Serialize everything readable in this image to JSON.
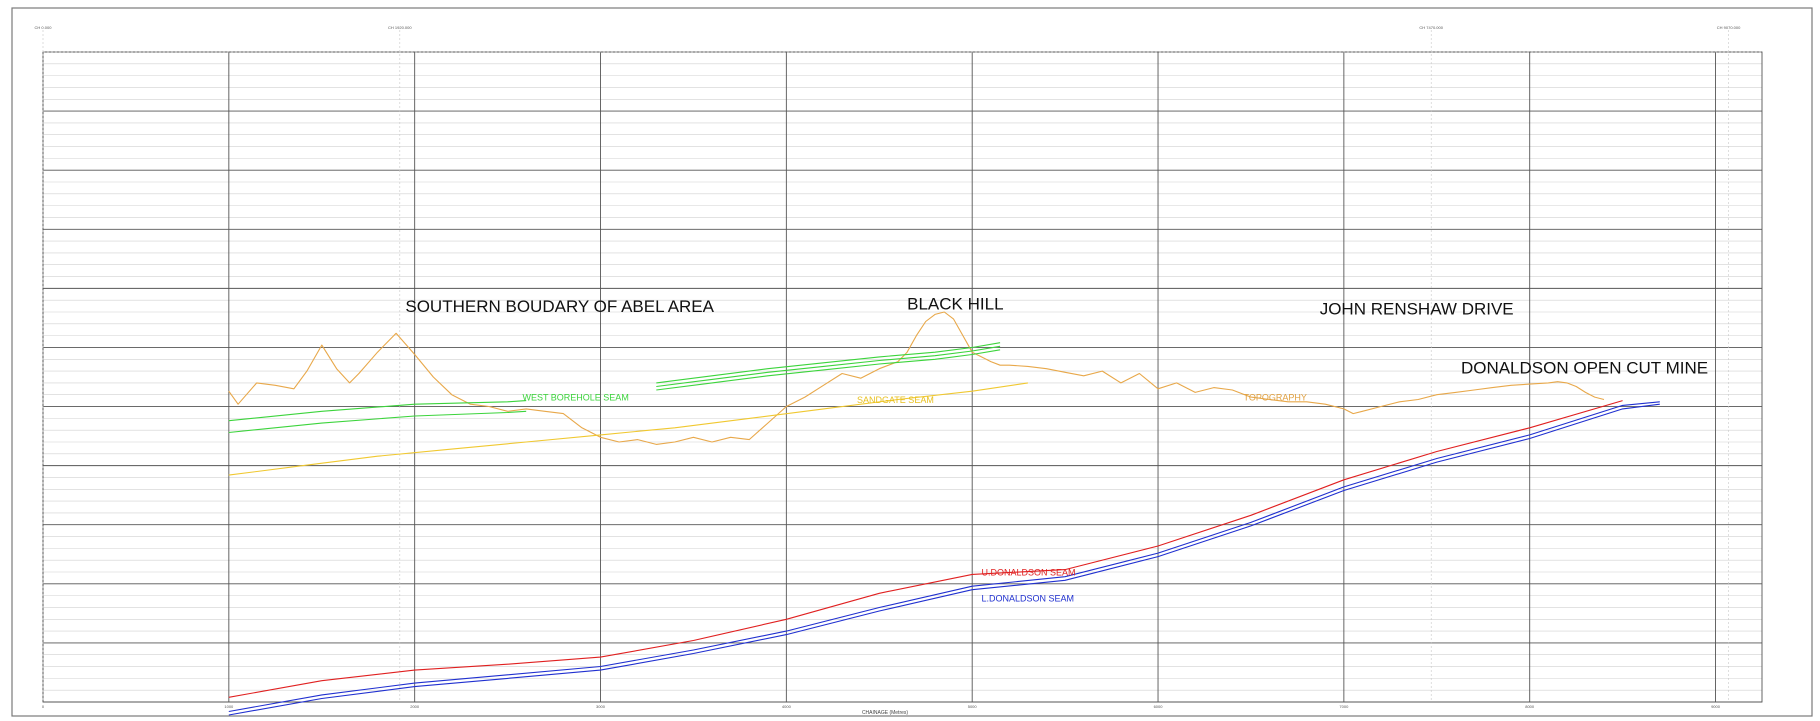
{
  "diagram": {
    "x_axis": {
      "title": "CHAINAGE (Metres)",
      "min": 0,
      "max": 9250,
      "major_step": 1000,
      "tick_labels": [
        "0",
        "1000",
        "2000",
        "3000",
        "4000",
        "5000",
        "6000",
        "7000",
        "8000",
        "9000"
      ]
    },
    "y_axis": {
      "min": -230,
      "max": 320,
      "major_step": 50,
      "minor_step": 10
    },
    "top_markers": [
      {
        "chainage": 0,
        "label": "CH 0.000"
      },
      {
        "chainage": 1920,
        "label": "CH 1920.000"
      },
      {
        "chainage": 7470,
        "label": "CH 7470.000"
      },
      {
        "chainage": 9070,
        "label": "CH 9070.000"
      }
    ],
    "annotations": [
      {
        "text": "SOUTHERN BOUDARY OF ABEL AREA",
        "chainage": 1950,
        "elevation": 100
      },
      {
        "text": "BLACK HILL",
        "chainage": 4650,
        "elevation": 102
      },
      {
        "text": "JOHN RENSHAW DRIVE",
        "chainage": 6870,
        "elevation": 98
      },
      {
        "text": "DONALDSON OPEN CUT MINE",
        "chainage": 7630,
        "elevation": 48
      }
    ],
    "series_labels": [
      {
        "text": "WEST BOREHOLE SEAM",
        "chainage": 2580,
        "elevation": 25,
        "color": "#3cd43c"
      },
      {
        "text": "SANDGATE SEAM",
        "chainage": 4380,
        "elevation": 23,
        "color": "#e8c020"
      },
      {
        "text": "TOPOGRAPHY",
        "chainage": 6460,
        "elevation": 25,
        "color": "#e0a040"
      },
      {
        "text": "U.DONALDSON SEAM",
        "chainage": 5050,
        "elevation": -123,
        "color": "#e02020"
      },
      {
        "text": "L.DONALDSON SEAM",
        "chainage": 5050,
        "elevation": -145,
        "color": "#2030d0"
      }
    ],
    "colors": {
      "topography": "#e8a84a",
      "west_borehole": "#3cd43c",
      "sandgate": "#f0c830",
      "u_donaldson": "#e02020",
      "l_donaldson": "#2030d0"
    }
  },
  "chart_data": {
    "type": "line",
    "xlabel": "CHAINAGE (Metres)",
    "xlim": [
      0,
      9250
    ],
    "ylim": [
      -230,
      320
    ],
    "series": [
      {
        "name": "TOPOGRAPHY",
        "x": [
          1000,
          1050,
          1150,
          1250,
          1350,
          1420,
          1500,
          1580,
          1650,
          1700,
          1800,
          1900,
          2000,
          2100,
          2200,
          2300,
          2400,
          2500,
          2600,
          2700,
          2800,
          2900,
          3000,
          3100,
          3200,
          3300,
          3400,
          3500,
          3600,
          3700,
          3800,
          3900,
          4000,
          4100,
          4200,
          4300,
          4400,
          4500,
          4600,
          4650,
          4700,
          4750,
          4800,
          4850,
          4900,
          4950,
          5000,
          5050,
          5100,
          5150,
          5200,
          5300,
          5400,
          5500,
          5600,
          5700,
          5800,
          5900,
          6000,
          6100,
          6200,
          6300,
          6400,
          6500,
          6600,
          6700,
          6800,
          6900,
          7000,
          7050,
          7100,
          7200,
          7300,
          7400,
          7500,
          7600,
          7700,
          7800,
          7900,
          8000,
          8100,
          8150,
          8200,
          8250,
          8300,
          8350,
          8400
        ],
        "y": [
          33,
          22,
          40,
          38,
          35,
          50,
          72,
          52,
          40,
          48,
          66,
          82,
          64,
          45,
          30,
          22,
          20,
          16,
          18,
          16,
          14,
          2,
          -6,
          -10,
          -8,
          -12,
          -10,
          -6,
          -10,
          -6,
          -8,
          6,
          20,
          28,
          38,
          48,
          44,
          52,
          58,
          66,
          80,
          92,
          98,
          100,
          94,
          80,
          66,
          62,
          58,
          55,
          55,
          54,
          52,
          49,
          46,
          50,
          40,
          48,
          35,
          40,
          32,
          36,
          34,
          28,
          26,
          24,
          24,
          22,
          18,
          14,
          16,
          20,
          24,
          26,
          30,
          32,
          34,
          36,
          38,
          39,
          40,
          41,
          40,
          37,
          32,
          28,
          26
        ]
      },
      {
        "name": "WEST BOREHOLE SEAM",
        "x": [
          1000,
          1500,
          2000,
          2500,
          2600
        ],
        "y": [
          8,
          16,
          22,
          24,
          25
        ]
      },
      {
        "name": "WEST BOREHOLE SEAM",
        "x": [
          1000,
          1500,
          2000,
          2500,
          2600
        ],
        "y": [
          -2,
          6,
          12,
          15,
          16
        ]
      },
      {
        "name": "WEST BOREHOLE SEAM",
        "x": [
          3300,
          3600,
          3900,
          4200,
          4500,
          4800,
          5000,
          5150
        ],
        "y": [
          40,
          46,
          52,
          57,
          62,
          66,
          70,
          74
        ]
      },
      {
        "name": "WEST BOREHOLE SEAM",
        "x": [
          3300,
          3600,
          3900,
          4200,
          4500,
          4800,
          5000,
          5150
        ],
        "y": [
          37,
          43,
          49,
          54,
          59,
          63,
          67,
          71
        ]
      },
      {
        "name": "WEST BOREHOLE SEAM",
        "x": [
          3300,
          3600,
          3900,
          4200,
          4500,
          4800,
          5000,
          5150
        ],
        "y": [
          34,
          40,
          46,
          51,
          56,
          60,
          64,
          68
        ]
      },
      {
        "name": "SANDGATE SEAM",
        "x": [
          1000,
          1400,
          1800,
          2200,
          2600,
          3000,
          3400,
          3800,
          4200,
          4600,
          5000,
          5300
        ],
        "y": [
          -38,
          -30,
          -22,
          -16,
          -10,
          -4,
          2,
          10,
          18,
          26,
          33,
          40
        ]
      },
      {
        "name": "U.DONALDSON SEAM",
        "x": [
          1000,
          1500,
          2000,
          2500,
          3000,
          3500,
          4000,
          4500,
          5000,
          5500,
          6000,
          6500,
          7000,
          7500,
          8000,
          8500
        ],
        "y": [
          -226,
          -212,
          -203,
          -198,
          -192,
          -178,
          -160,
          -138,
          -122,
          -118,
          -98,
          -72,
          -42,
          -18,
          2,
          25
        ]
      },
      {
        "name": "L.DONALDSON SEAM",
        "x": [
          1000,
          1500,
          2000,
          2500,
          3000,
          3500,
          4000,
          4500,
          5000,
          5500,
          6000,
          6500,
          7000,
          7500,
          8000,
          8500,
          8700
        ],
        "y": [
          -238,
          -224,
          -214,
          -207,
          -200,
          -186,
          -170,
          -150,
          -132,
          -124,
          -104,
          -78,
          -48,
          -24,
          -4,
          21,
          24
        ]
      },
      {
        "name": "L.DONALDSON SEAM",
        "x": [
          1000,
          1500,
          2000,
          2500,
          3000,
          3500,
          4000,
          4500,
          5000,
          5500,
          6000,
          6500,
          7000,
          7500,
          8000,
          8500,
          8700
        ],
        "y": [
          -241,
          -227,
          -217,
          -210,
          -203,
          -189,
          -173,
          -153,
          -135,
          -127,
          -107,
          -81,
          -51,
          -27,
          -7,
          18,
          22
        ]
      }
    ]
  }
}
